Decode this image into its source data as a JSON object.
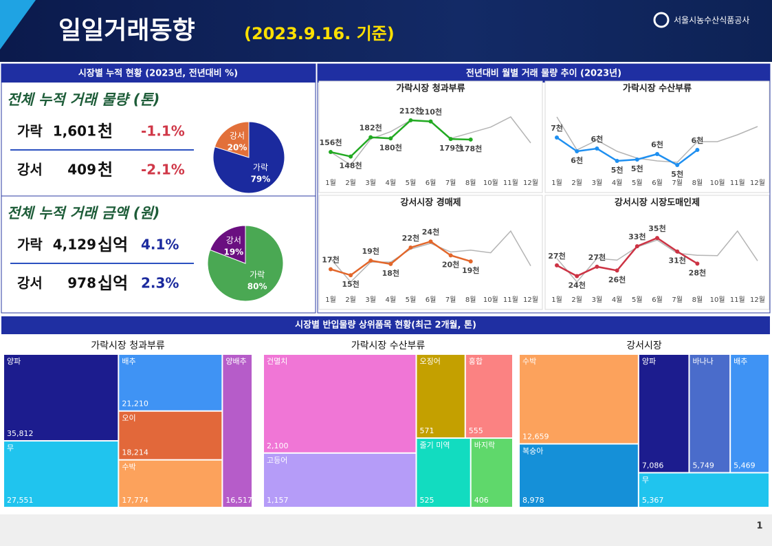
{
  "header": {
    "title": "일일거래동향",
    "date": "(2023.9.16. 기준)",
    "org": "서울시농수산식품공사"
  },
  "page_number": "1",
  "summary": {
    "title": "시장별 누적 현황 (2023년, 전년대비 %)",
    "sections": [
      {
        "heading": "전체 누적 거래 물량 (톤)",
        "rows": [
          {
            "market": "가락",
            "value": "1,601",
            "unit": "천",
            "change": "-1.1%"
          },
          {
            "market": "강서",
            "value": "409",
            "unit": "천",
            "change": "-2.1%"
          }
        ]
      },
      {
        "heading": "전체 누적 거래 금액 (원)",
        "rows": [
          {
            "market": "가락",
            "value": "4,129",
            "unit": "십억",
            "change": "4.1%"
          },
          {
            "market": "강서",
            "value": "978",
            "unit": "십억",
            "change": "2.3%"
          }
        ]
      }
    ]
  },
  "trend_title": "전년대비 월별 거래 물량 추이 (2023년)",
  "treemap_title": "시장별 반입물량 상위품목 현황(최근 2개월, 톤)",
  "chart_data": [
    {
      "type": "pie",
      "categories": [
        "가락",
        "강서"
      ],
      "values": [
        79,
        20
      ],
      "value_labels": [
        "79%",
        "20%"
      ],
      "colors": [
        "#1b2a9e",
        "#e2703a"
      ]
    },
    {
      "type": "pie",
      "categories": [
        "가락",
        "강서"
      ],
      "values": [
        80,
        19
      ],
      "value_labels": [
        "80%",
        "19%"
      ],
      "colors": [
        "#4aa853",
        "#6a0f80"
      ]
    },
    {
      "type": "line",
      "title": "가락시장 청과부류",
      "categories": [
        "1월",
        "2월",
        "3월",
        "4월",
        "5월",
        "6월",
        "7월",
        "8월",
        "10월",
        "11월",
        "12월"
      ],
      "series": [
        {
          "color": "#b4b4b4",
          "values": [
            156,
            133,
            179,
            192,
            212,
            210,
            180,
            190,
            200,
            218,
            172
          ]
        },
        {
          "color": "#22aa22",
          "values": [
            156,
            148,
            182,
            180,
            212,
            210,
            179,
            178,
            null,
            null,
            null
          ],
          "value_labels": [
            "156천",
            "148천",
            "182천",
            "180천",
            "212천",
            "210천",
            "179천",
            "178천",
            null,
            null,
            null
          ]
        }
      ]
    },
    {
      "type": "line",
      "title": "가락시장 수산부류",
      "categories": [
        "1월",
        "2월",
        "3월",
        "4월",
        "5월",
        "6월",
        "7월",
        "8월",
        "10월",
        "11월",
        "12월"
      ],
      "series": [
        {
          "color": "#b4b4b4",
          "values": [
            8.5,
            6.1,
            6.8,
            6.0,
            5.5,
            5.3,
            5.2,
            6.7,
            6.7,
            7.2,
            7.8
          ]
        },
        {
          "color": "#1e8ff0",
          "values": [
            7.0,
            6.0,
            6.2,
            5.3,
            5.4,
            5.8,
            5.0,
            6.1,
            null,
            null,
            null
          ],
          "value_labels": [
            "7천",
            "6천",
            "6천",
            "5천",
            "5천",
            "6천",
            "5천",
            "6천",
            null,
            null,
            null
          ]
        }
      ]
    },
    {
      "type": "line",
      "title": "강서시장 경매제",
      "categories": [
        "1월",
        "2월",
        "3월",
        "4월",
        "5월",
        "6월",
        "7월",
        "8월",
        "10월",
        "11월",
        "12월"
      ],
      "series": [
        {
          "color": "#b4b4b4",
          "values": [
            19.4,
            13.2,
            18.5,
            18.5,
            22.0,
            23.5,
            21.2,
            21.7,
            21.0,
            26.8,
            17.5
          ]
        },
        {
          "color": "#e2662a",
          "values": [
            16.6,
            15.0,
            18.9,
            18.0,
            22.4,
            24.0,
            20.3,
            18.7,
            null,
            null,
            null
          ],
          "value_labels": [
            "17천",
            "15천",
            "19천",
            "18천",
            "22천",
            "24천",
            "20천",
            "19천",
            null,
            null,
            null
          ]
        }
      ]
    },
    {
      "type": "line",
      "title": "강서시장 시장도매인제",
      "categories": [
        "1월",
        "2월",
        "3월",
        "4월",
        "5월",
        "6월",
        "7월",
        "8월",
        "10월",
        "11월",
        "12월"
      ],
      "series": [
        {
          "color": "#b4b4b4",
          "values": [
            29.1,
            22.3,
            29.1,
            28.6,
            32.4,
            34.4,
            30.6,
            30.0,
            29.9,
            37.0,
            28.4
          ]
        },
        {
          "color": "#cc3344",
          "values": [
            27.1,
            24.0,
            26.7,
            25.6,
            32.6,
            35.0,
            31.1,
            27.6,
            null,
            null,
            null
          ],
          "value_labels": [
            "27천",
            "24천",
            "27천",
            "26천",
            "33천",
            "35천",
            "31천",
            "28천",
            null,
            null,
            null
          ]
        }
      ]
    },
    {
      "type": "treemap",
      "title": "가락시장 청과부류",
      "categories": [
        "양파",
        "무",
        "배추",
        "오이",
        "수박",
        "양배추"
      ],
      "values": [
        35812,
        27551,
        21210,
        18214,
        17774,
        16517
      ],
      "value_labels": [
        "35,812",
        "27,551",
        "21,210",
        "18,214",
        "17,774",
        "16,517"
      ],
      "colors": [
        "#1c1c8e",
        "#20c4ee",
        "#3f93f4",
        "#e2683a",
        "#fca25c",
        "#b65cc9"
      ]
    },
    {
      "type": "treemap",
      "title": "가락시장 수산부류",
      "categories": [
        "건멸치",
        "고등어",
        "오징어",
        "홍합",
        "줄기 미역",
        "바지락"
      ],
      "values": [
        2100,
        1157,
        571,
        555,
        525,
        406
      ],
      "value_labels": [
        "2,100",
        "1,157",
        "571",
        "555",
        "525",
        "406"
      ],
      "colors": [
        "#f076d6",
        "#b59cf8",
        "#c4a000",
        "#fb8282",
        "#12dcc0",
        "#5fd86b"
      ]
    },
    {
      "type": "treemap",
      "title": "강서시장",
      "categories": [
        "수박",
        "복숭아",
        "양파",
        "바나나",
        "배추",
        "무"
      ],
      "values": [
        12659,
        8978,
        7086,
        5749,
        5469,
        5367
      ],
      "value_labels": [
        "12,659",
        "8,978",
        "7,086",
        "5,749",
        "5,469",
        "5,367"
      ],
      "colors": [
        "#fca25c",
        "#1590d8",
        "#1c1c8e",
        "#4a6ccb",
        "#3f93f4",
        "#20c4ee"
      ]
    }
  ]
}
